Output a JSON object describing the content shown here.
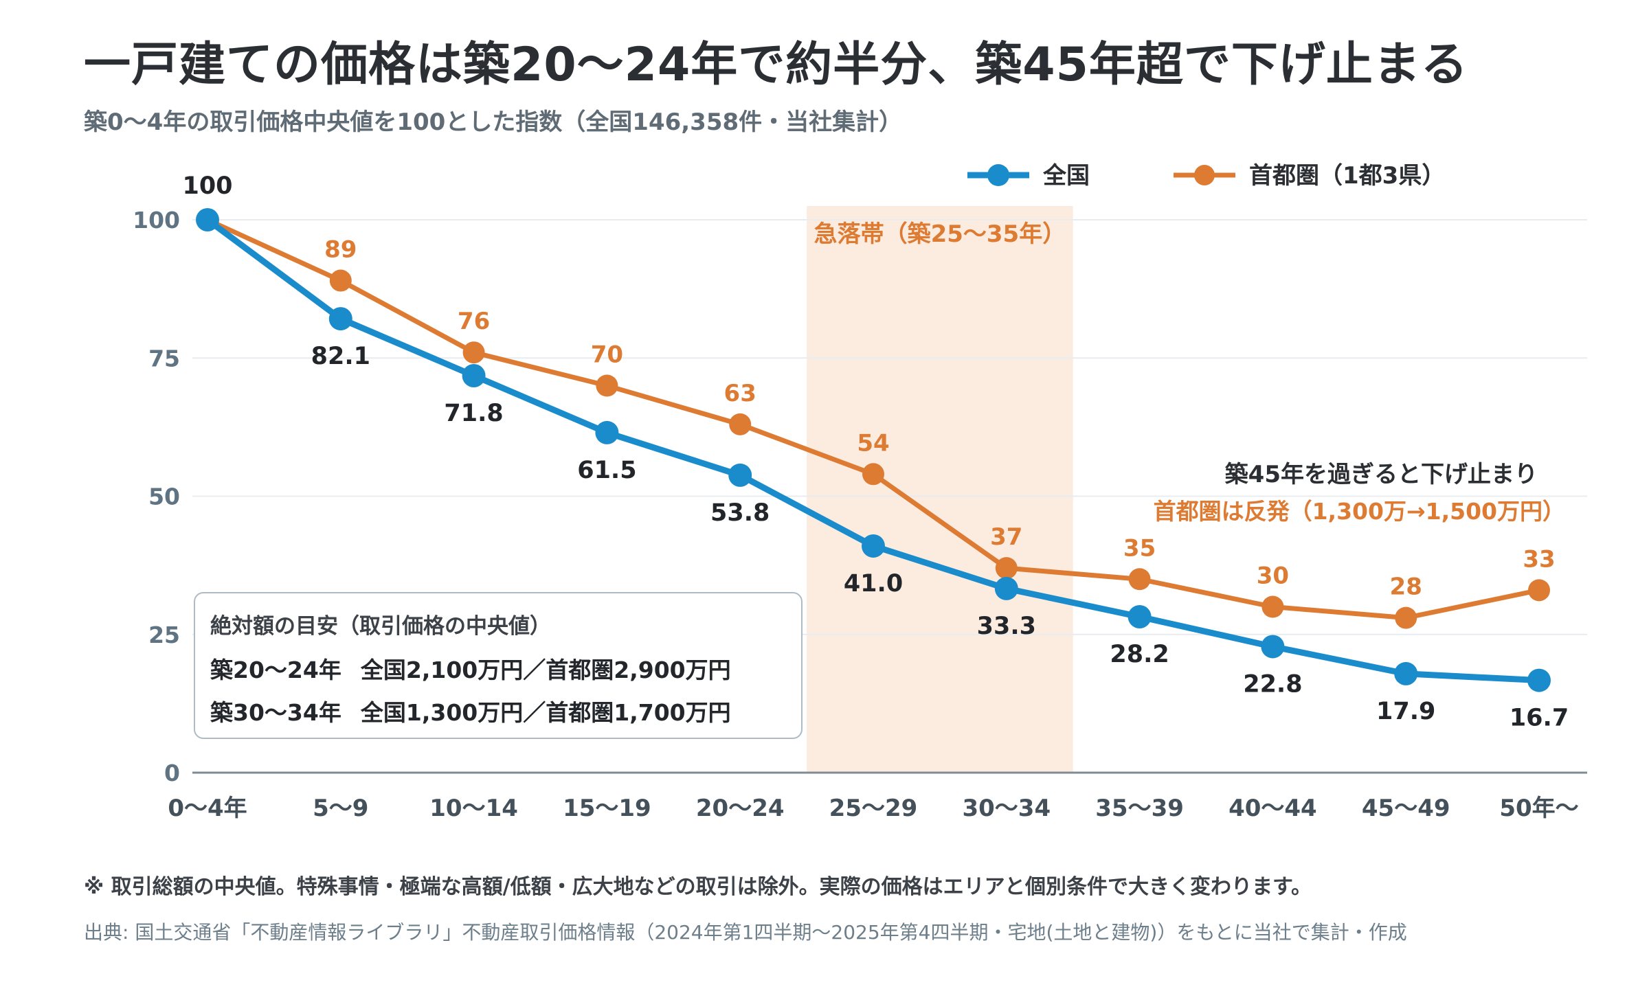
{
  "title": "一戸建ての価格は築20〜24年で約半分、築45年超で下げ止まる",
  "subtitle": "築0〜4年の取引価格中央値を100とした指数（全国146,358件・当社集計）",
  "colors": {
    "national": "#1a8ccc",
    "metro": "#dd7b33",
    "band": "#fcece0",
    "grid": "#e8ecef",
    "axis_text": "#5f7382"
  },
  "chart_data": {
    "type": "line",
    "categories": [
      "0〜4年",
      "5〜9",
      "10〜14",
      "15〜19",
      "20〜24",
      "25〜29",
      "30〜34",
      "35〜39",
      "40〜44",
      "45〜49",
      "50年〜"
    ],
    "ylim": [
      0,
      100
    ],
    "yticks": [
      0,
      25,
      50,
      75,
      100
    ],
    "grid": true,
    "legend_position": "top-right",
    "series": [
      {
        "name": "全国",
        "values": [
          100,
          82.1,
          71.8,
          61.5,
          53.8,
          41.0,
          33.3,
          28.2,
          22.8,
          17.9,
          16.7
        ],
        "labels": [
          "100",
          "82.1",
          "71.8",
          "61.5",
          "53.8",
          "41.0",
          "33.3",
          "28.2",
          "22.8",
          "17.9",
          "16.7"
        ]
      },
      {
        "name": "首都圏（1都3県）",
        "values": [
          100,
          89,
          76,
          70,
          63,
          54,
          37,
          35,
          30,
          28,
          33
        ],
        "labels": [
          "",
          "89",
          "76",
          "70",
          "63",
          "54",
          "37",
          "35",
          "30",
          "28",
          "33"
        ]
      }
    ],
    "highlight_band": {
      "label": "急落帯（築25〜35年）",
      "from_category": "25〜29",
      "to_category": "30〜34"
    },
    "annotations": {
      "line1": "築45年を過ぎると下げ止まり",
      "line2": "首都圏は反発（1,300万→1,500万円）"
    }
  },
  "info_box": {
    "title": "絶対額の目安（取引価格の中央値）",
    "row1_age": "築20〜24年",
    "row1_values": "全国2,100万円／首都圏2,900万円",
    "row2_age": "築30〜34年",
    "row2_values": "全国1,300万円／首都圏1,700万円"
  },
  "footnote": "※ 取引総額の中央値。特殊事情・極端な高額/低額・広大地などの取引は除外。実際の価格はエリアと個別条件で大きく変わります。",
  "source": "出典: 国土交通省「不動産情報ライブラリ」不動産取引価格情報（2024年第1四半期〜2025年第4四半期・宅地(土地と建物)）をもとに当社で集計・作成"
}
